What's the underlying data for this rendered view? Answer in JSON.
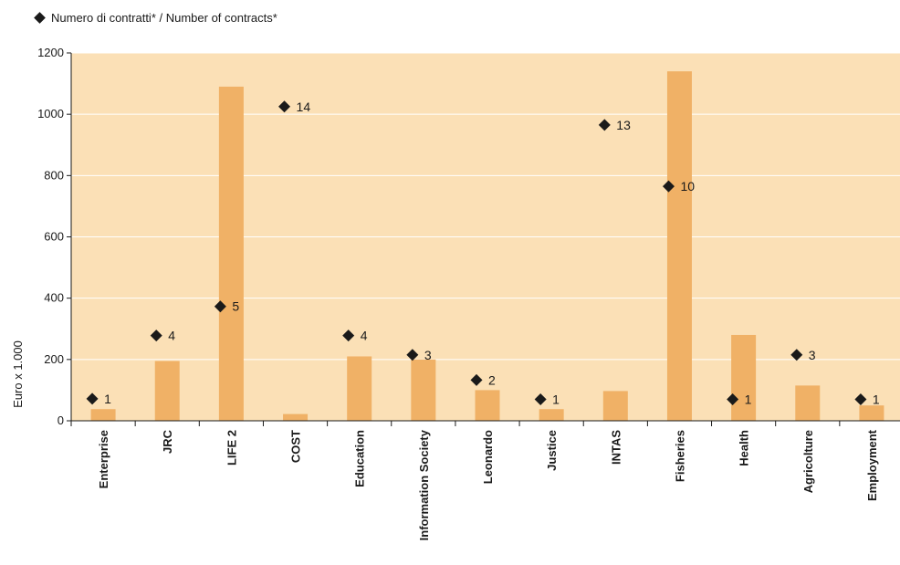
{
  "legend": {
    "series_label": "Numero di contratti* / Number of contracts*"
  },
  "colors": {
    "plot_bg": "#fbe0b6",
    "bar": "#f0b166",
    "marker": "#1a1a1a",
    "grid": "#ffffff"
  },
  "chart_data": {
    "type": "bar",
    "title": "",
    "xlabel": "",
    "ylabel": "Euro x 1.000",
    "ylim": [
      0,
      1200
    ],
    "yticks": [
      0,
      200,
      400,
      600,
      800,
      1000,
      1200
    ],
    "grid": true,
    "legend_position": "top-left",
    "categories": [
      "Enterprise",
      "JRC",
      "LIFE 2",
      "COST",
      "Education",
      "Information Society",
      "Leonardo",
      "Justice",
      "INTAS",
      "Fisheries",
      "Health",
      "Agricolture",
      "Employment"
    ],
    "series": [
      {
        "type": "bar",
        "values": [
          38,
          195,
          1090,
          22,
          210,
          200,
          100,
          38,
          97,
          1140,
          280,
          115,
          50
        ]
      },
      {
        "type": "scatter",
        "name": "Numero di contratti* / Number of contracts*",
        "marker": "diamond",
        "positions": [
          72,
          278,
          373,
          1025,
          278,
          215,
          133,
          70,
          965,
          765,
          70,
          215,
          70
        ],
        "labels": [
          "1",
          "4",
          "5",
          "14",
          "4",
          "3",
          "2",
          "1",
          "13",
          "10",
          "1",
          "3",
          "1"
        ]
      }
    ]
  }
}
